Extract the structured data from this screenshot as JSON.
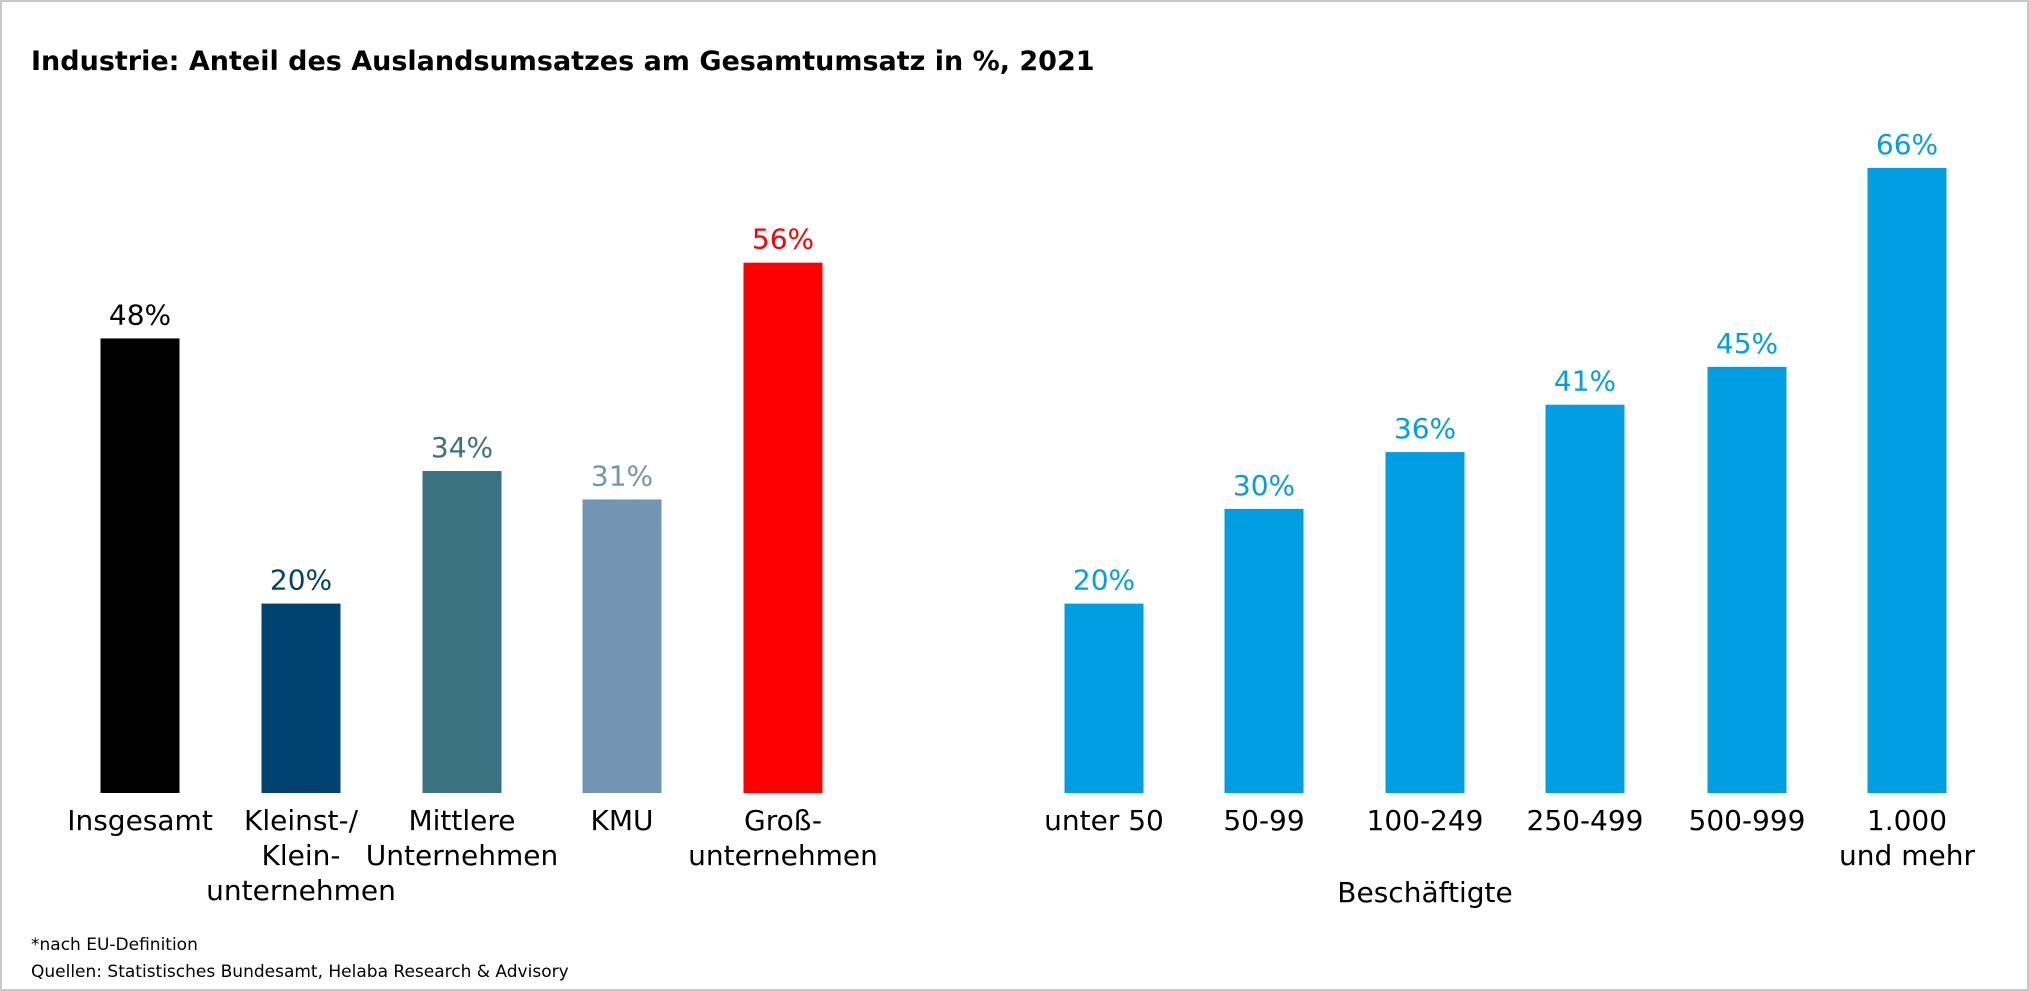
{
  "title": "Industrie: Anteil des Auslandsumsatzes am Gesamtumsatz in %, 2021",
  "chart_data": [
    {
      "type": "bar",
      "categories": [
        "Insgesamt",
        "Kleinst-/\nKlein-\nunternehmen",
        "Mittlere\nUnternehmen",
        "KMU",
        "Groß-\nunternehmen"
      ],
      "values": [
        48,
        20,
        34,
        31,
        56
      ],
      "value_labels": [
        "48%",
        "20%",
        "34%",
        "31%",
        "56%"
      ],
      "colors": [
        "#000000",
        "#004370",
        "#3a7282",
        "#7394b2",
        "#ff0000"
      ]
    },
    {
      "type": "bar",
      "categories": [
        "unter 50",
        "50-99",
        "100-249",
        "250-499",
        "500-999",
        "1.000\nund mehr"
      ],
      "values": [
        20,
        30,
        36,
        41,
        45,
        66
      ],
      "value_labels": [
        "20%",
        "30%",
        "36%",
        "41%",
        "45%",
        "66%"
      ],
      "color": "#009fe3",
      "xlabel": "Beschäftigte"
    }
  ],
  "footnotes": [
    "*nach EU-Definition",
    "Quellen: Statistisches Bundesamt, Helaba Research & Advisory"
  ]
}
